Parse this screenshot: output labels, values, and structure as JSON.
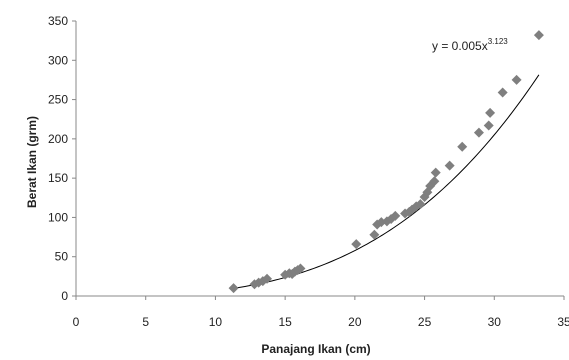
{
  "chart_data": {
    "type": "scatter",
    "title": "",
    "xlabel": "Panajang Ikan (cm)",
    "ylabel": "Berat Ikan (grm)",
    "xlim": [
      0,
      35
    ],
    "ylim": [
      0,
      350
    ],
    "x_ticks": [
      0,
      5,
      10,
      15,
      20,
      25,
      30,
      35
    ],
    "y_ticks": [
      0,
      50,
      100,
      150,
      200,
      250,
      300,
      350
    ],
    "x_tick_labels": [
      "0",
      "5",
      "10",
      "15",
      "20",
      "25",
      "30",
      "35"
    ],
    "y_tick_labels": [
      "0",
      "50",
      "100",
      "150",
      "200",
      "250",
      "300",
      "350"
    ],
    "grid": false,
    "legend": "none",
    "marker_color": "#7f7f7f",
    "trendline": {
      "type": "power",
      "coefficient": 0.005,
      "exponent": 3.123,
      "x_range": [
        11.3,
        33.2
      ],
      "equation_base": "y = 0.005x",
      "equation_exponent": "3.123",
      "color": "#000000"
    },
    "points": [
      {
        "x": 11.3,
        "y": 10
      },
      {
        "x": 12.8,
        "y": 15
      },
      {
        "x": 13.1,
        "y": 17
      },
      {
        "x": 13.4,
        "y": 19
      },
      {
        "x": 13.7,
        "y": 22
      },
      {
        "x": 15.0,
        "y": 27
      },
      {
        "x": 15.3,
        "y": 29
      },
      {
        "x": 15.5,
        "y": 28
      },
      {
        "x": 15.7,
        "y": 31
      },
      {
        "x": 15.9,
        "y": 33
      },
      {
        "x": 16.1,
        "y": 35
      },
      {
        "x": 20.1,
        "y": 66
      },
      {
        "x": 21.4,
        "y": 78
      },
      {
        "x": 21.6,
        "y": 91
      },
      {
        "x": 21.9,
        "y": 94
      },
      {
        "x": 22.3,
        "y": 95
      },
      {
        "x": 22.6,
        "y": 98
      },
      {
        "x": 22.9,
        "y": 102
      },
      {
        "x": 23.6,
        "y": 105
      },
      {
        "x": 23.9,
        "y": 107
      },
      {
        "x": 24.1,
        "y": 110
      },
      {
        "x": 24.4,
        "y": 114
      },
      {
        "x": 24.7,
        "y": 117
      },
      {
        "x": 25.0,
        "y": 126
      },
      {
        "x": 25.2,
        "y": 132
      },
      {
        "x": 25.4,
        "y": 140
      },
      {
        "x": 25.7,
        "y": 146
      },
      {
        "x": 25.8,
        "y": 157
      },
      {
        "x": 26.8,
        "y": 166
      },
      {
        "x": 27.7,
        "y": 190
      },
      {
        "x": 28.9,
        "y": 208
      },
      {
        "x": 29.6,
        "y": 217
      },
      {
        "x": 29.7,
        "y": 233
      },
      {
        "x": 30.6,
        "y": 259
      },
      {
        "x": 31.6,
        "y": 275
      },
      {
        "x": 33.2,
        "y": 332
      }
    ]
  }
}
